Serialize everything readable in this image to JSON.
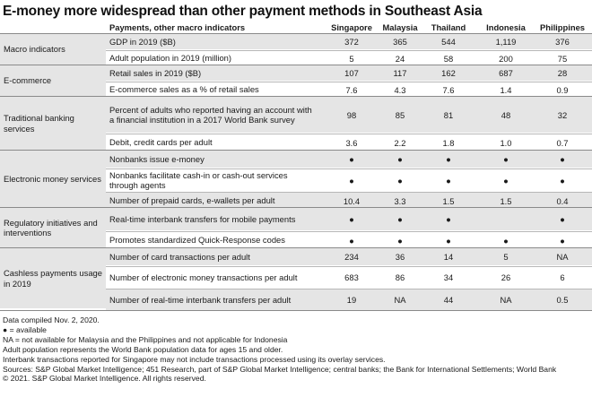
{
  "title": "E-money more widespread than other payment methods in Southeast Asia",
  "columns": {
    "indicator": "Payments, other macro indicators",
    "countries": [
      "Singapore",
      "Malaysia",
      "Thailand",
      "Indonesia",
      "Philippines"
    ]
  },
  "groups": [
    {
      "category": "Macro indicators",
      "rows": [
        {
          "label": "GDP in 2019 ($B)",
          "values": [
            "372",
            "365",
            "544",
            "1,119",
            "376"
          ]
        },
        {
          "label": "Adult population in 2019 (million)",
          "values": [
            "5",
            "24",
            "58",
            "200",
            "75"
          ]
        }
      ]
    },
    {
      "category": "E-commerce",
      "rows": [
        {
          "label": "Retail sales in 2019 ($B)",
          "values": [
            "107",
            "117",
            "162",
            "687",
            "28"
          ]
        },
        {
          "label": "E-commerce sales as a % of retail sales",
          "values": [
            "7.6",
            "4.3",
            "7.6",
            "1.4",
            "0.9"
          ]
        }
      ]
    },
    {
      "category": "Traditional banking services",
      "rows": [
        {
          "label": "Percent of adults who reported having an account with a financial institution in a 2017 World Bank survey",
          "values": [
            "98",
            "85",
            "81",
            "48",
            "32"
          ]
        },
        {
          "label": "Debit, credit cards per adult",
          "values": [
            "3.6",
            "2.2",
            "1.8",
            "1.0",
            "0.7"
          ]
        }
      ]
    },
    {
      "category": "Electronic money services",
      "rows": [
        {
          "label": "Nonbanks issue e-money",
          "values": [
            "●",
            "●",
            "●",
            "●",
            "●"
          ]
        },
        {
          "label": "Nonbanks facilitate cash-in or cash-out services through agents",
          "values": [
            "●",
            "●",
            "●",
            "●",
            "●"
          ]
        },
        {
          "label": "Number of prepaid cards, e-wallets per adult",
          "values": [
            "10.4",
            "3.3",
            "1.5",
            "1.5",
            "0.4"
          ]
        }
      ]
    },
    {
      "category": "Regulatory initiatives and interventions",
      "rows": [
        {
          "label": "Real-time interbank transfers for mobile payments",
          "values": [
            "●",
            "●",
            "●",
            "",
            "●"
          ]
        },
        {
          "label": "Promotes standardized Quick-Response codes",
          "values": [
            "●",
            "●",
            "●",
            "●",
            "●"
          ]
        }
      ]
    },
    {
      "category": "Cashless payments usage in 2019",
      "rows": [
        {
          "label": "Number of card transactions per adult",
          "values": [
            "234",
            "36",
            "14",
            "5",
            "NA"
          ]
        },
        {
          "label": "Number of electronic money transactions per adult",
          "values": [
            "683",
            "86",
            "34",
            "26",
            "6"
          ]
        },
        {
          "label": "Number of real-time interbank transfers per adult",
          "values": [
            "19",
            "NA",
            "44",
            "NA",
            "0.5"
          ]
        }
      ]
    }
  ],
  "notes": [
    "Data compiled Nov. 2, 2020.",
    "● = available",
    "NA = not available for Malaysia and the Philippines and not applicable for Indonesia",
    "Adult population represents the World Bank population data for ages 15 and older.",
    "Interbank transactions reported for Singapore may not include transactions processed using its overlay services.",
    "Sources: S&P Global Market Intelligence; 451 Research, part of S&P Global Market Intelligence; central banks; the Bank for International Settlements; World Bank",
    "© 2021. S&P Global Market Intelligence. All rights reserved."
  ]
}
